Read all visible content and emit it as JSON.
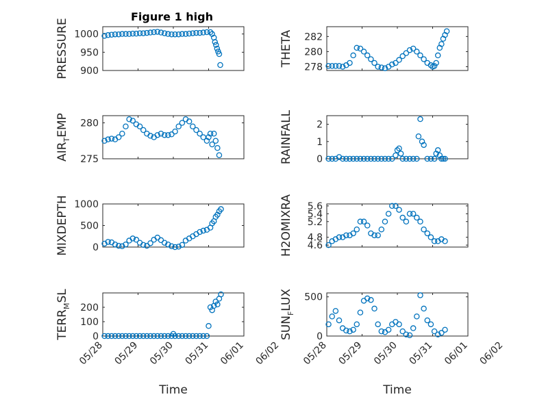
{
  "title": "Figure 1 high",
  "marker_color": "#0072bd",
  "chart_data": [
    {
      "type": "scatter",
      "ylabel": "PRESSURE",
      "ylabel_sub": "",
      "ylabel_tail": "",
      "ylim": [
        900,
        1020
      ],
      "yticks": [
        900,
        950,
        1000
      ],
      "ytick_labels": [
        "900",
        "950",
        "1000"
      ],
      "yminor": [
        910,
        920,
        930,
        940,
        960,
        970,
        980,
        990,
        1010
      ],
      "xlim": [
        0,
        4
      ],
      "grid": true,
      "x": [
        0.05,
        0.15,
        0.25,
        0.35,
        0.45,
        0.55,
        0.65,
        0.75,
        0.85,
        0.95,
        1.05,
        1.15,
        1.25,
        1.35,
        1.45,
        1.55,
        1.65,
        1.75,
        1.85,
        1.95,
        2.05,
        2.15,
        2.25,
        2.35,
        2.45,
        2.55,
        2.65,
        2.75,
        2.85,
        2.95,
        3.05,
        3.1,
        3.15,
        3.18,
        3.21,
        3.24,
        3.27,
        3.3,
        3.33
      ],
      "y": [
        995,
        997,
        998,
        999,
        999,
        1000,
        1000,
        1000,
        1001,
        1001,
        1002,
        1002,
        1003,
        1004,
        1005,
        1006,
        1004,
        1002,
        1000,
        999,
        999,
        999,
        1000,
        1000,
        1001,
        1002,
        1003,
        1003,
        1004,
        1005,
        1005,
        1000,
        990,
        978,
        970,
        960,
        952,
        945,
        915
      ]
    },
    {
      "type": "scatter",
      "ylabel": "THETA",
      "ylabel_sub": "",
      "ylabel_tail": "",
      "ylim": [
        277.5,
        283.3
      ],
      "yticks": [
        278,
        280,
        282
      ],
      "ytick_labels": [
        "278",
        "280",
        "282"
      ],
      "yminor": [
        279,
        281,
        283
      ],
      "xlim": [
        0,
        4
      ],
      "grid": true,
      "x": [
        0.05,
        0.15,
        0.25,
        0.35,
        0.45,
        0.55,
        0.65,
        0.75,
        0.85,
        0.95,
        1.05,
        1.15,
        1.25,
        1.35,
        1.45,
        1.55,
        1.65,
        1.75,
        1.85,
        1.95,
        2.05,
        2.15,
        2.25,
        2.35,
        2.45,
        2.55,
        2.65,
        2.75,
        2.85,
        2.95,
        3.0,
        3.05,
        3.1,
        3.15,
        3.2,
        3.25,
        3.3,
        3.35,
        3.4
      ],
      "y": [
        278.1,
        278.1,
        278.1,
        278.1,
        278.0,
        278.2,
        278.5,
        279.5,
        280.5,
        280.4,
        280.0,
        279.5,
        279.0,
        278.5,
        278.0,
        277.9,
        277.8,
        278.0,
        278.3,
        278.5,
        278.9,
        279.4,
        279.8,
        280.2,
        280.4,
        280.0,
        279.5,
        279.0,
        278.5,
        278.2,
        278.0,
        278.1,
        278.5,
        279.5,
        280.5,
        281.0,
        281.7,
        282.2,
        282.7
      ]
    },
    {
      "type": "scatter",
      "ylabel": "AIR",
      "ylabel_sub": "T",
      "ylabel_tail": "EMP",
      "ylim": [
        275,
        281
      ],
      "yticks": [
        275,
        280
      ],
      "ytick_labels": [
        "275",
        "280"
      ],
      "yminor": [
        276,
        277,
        278,
        279,
        281
      ],
      "xlim": [
        0,
        4
      ],
      "grid": true,
      "x": [
        0.05,
        0.15,
        0.25,
        0.35,
        0.45,
        0.55,
        0.65,
        0.75,
        0.85,
        0.95,
        1.05,
        1.15,
        1.25,
        1.35,
        1.45,
        1.55,
        1.65,
        1.75,
        1.85,
        1.95,
        2.05,
        2.15,
        2.25,
        2.35,
        2.45,
        2.55,
        2.65,
        2.75,
        2.85,
        2.95,
        3.0,
        3.05,
        3.1,
        3.15,
        3.2,
        3.25,
        3.3
      ],
      "y": [
        277.5,
        277.7,
        277.8,
        277.7,
        278.0,
        278.5,
        279.5,
        280.5,
        280.3,
        279.8,
        279.5,
        279.0,
        278.5,
        278.2,
        278.0,
        278.3,
        278.5,
        278.3,
        278.3,
        278.4,
        278.8,
        279.5,
        280.0,
        280.5,
        280.2,
        279.5,
        279.0,
        278.5,
        278.0,
        277.5,
        278.0,
        278.5,
        277.0,
        278.5,
        277.5,
        276.5,
        275.5
      ]
    },
    {
      "type": "scatter",
      "ylabel": "RAINFALL",
      "ylabel_sub": "",
      "ylabel_tail": "",
      "ylim": [
        0,
        2.5
      ],
      "yticks": [
        0,
        1,
        2
      ],
      "ytick_labels": [
        "0",
        "1",
        "2"
      ],
      "yminor": [
        0.5,
        1.5
      ],
      "xlim": [
        0,
        4
      ],
      "grid": true,
      "x": [
        0.05,
        0.15,
        0.25,
        0.35,
        0.45,
        0.55,
        0.65,
        0.75,
        0.85,
        0.95,
        1.05,
        1.15,
        1.25,
        1.35,
        1.45,
        1.55,
        1.65,
        1.75,
        1.85,
        1.95,
        2.0,
        2.05,
        2.1,
        2.15,
        2.25,
        2.35,
        2.45,
        2.55,
        2.6,
        2.65,
        2.7,
        2.75,
        2.85,
        2.95,
        3.05,
        3.1,
        3.15,
        3.2,
        3.25,
        3.3,
        3.35
      ],
      "y": [
        0,
        0,
        0,
        0.1,
        0,
        0,
        0,
        0,
        0,
        0,
        0,
        0,
        0,
        0,
        0,
        0,
        0,
        0,
        0,
        0.2,
        0.5,
        0.6,
        0.3,
        0,
        0,
        0,
        0,
        0,
        1.3,
        2.3,
        1.0,
        0.8,
        0,
        0,
        0,
        0.3,
        0.5,
        0.2,
        0,
        0,
        0
      ]
    },
    {
      "type": "scatter",
      "ylabel": "MIXDEPTH",
      "ylabel_sub": "",
      "ylabel_tail": "",
      "ylim": [
        0,
        1000
      ],
      "yticks": [
        0,
        500,
        1000
      ],
      "ytick_labels": [
        "0",
        "500",
        "1000"
      ],
      "yminor": [
        100,
        200,
        300,
        400,
        600,
        700,
        800,
        900
      ],
      "xlim": [
        0,
        4
      ],
      "grid": true,
      "x": [
        0.05,
        0.15,
        0.25,
        0.35,
        0.45,
        0.55,
        0.65,
        0.75,
        0.85,
        0.95,
        1.05,
        1.15,
        1.25,
        1.35,
        1.45,
        1.55,
        1.65,
        1.75,
        1.85,
        1.95,
        2.05,
        2.15,
        2.25,
        2.35,
        2.45,
        2.55,
        2.65,
        2.75,
        2.85,
        2.95,
        3.05,
        3.1,
        3.15,
        3.2,
        3.25,
        3.3,
        3.35
      ],
      "y": [
        80,
        120,
        110,
        60,
        30,
        20,
        60,
        150,
        200,
        170,
        100,
        50,
        30,
        90,
        170,
        220,
        160,
        100,
        60,
        20,
        0,
        10,
        50,
        150,
        200,
        250,
        300,
        350,
        380,
        400,
        450,
        550,
        600,
        700,
        750,
        830,
        880
      ]
    },
    {
      "type": "scatter",
      "ylabel": "H2OMIXRA",
      "ylabel_sub": "",
      "ylabel_tail": "",
      "ylim": [
        4.55,
        5.65
      ],
      "yticks": [
        4.6,
        4.8,
        5.2,
        5.4,
        5.6
      ],
      "ytick_labels": [
        "4.6",
        "4.8",
        "5.2",
        "5.4",
        "5.6"
      ],
      "yminor": [
        5.0
      ],
      "xlim": [
        0,
        4
      ],
      "grid": true,
      "x": [
        0.05,
        0.15,
        0.25,
        0.35,
        0.45,
        0.55,
        0.65,
        0.75,
        0.85,
        0.95,
        1.05,
        1.15,
        1.25,
        1.35,
        1.45,
        1.55,
        1.65,
        1.75,
        1.85,
        1.95,
        2.05,
        2.15,
        2.25,
        2.35,
        2.45,
        2.55,
        2.65,
        2.75,
        2.85,
        2.95,
        3.05,
        3.15,
        3.25,
        3.35
      ],
      "y": [
        4.6,
        4.7,
        4.75,
        4.8,
        4.8,
        4.85,
        4.85,
        4.9,
        5.0,
        5.2,
        5.2,
        5.1,
        4.9,
        4.85,
        4.85,
        5.0,
        5.2,
        5.4,
        5.6,
        5.6,
        5.5,
        5.3,
        5.2,
        5.4,
        5.4,
        5.3,
        5.2,
        5.0,
        4.9,
        4.8,
        4.7,
        4.7,
        4.75,
        4.7
      ]
    },
    {
      "type": "scatter",
      "ylabel": "TERR",
      "ylabel_sub": "M",
      "ylabel_tail": "SL",
      "ylim": [
        0,
        300
      ],
      "yticks": [
        0,
        100,
        200
      ],
      "ytick_labels": [
        "0",
        "100",
        "200"
      ],
      "yminor": [
        50,
        150,
        250
      ],
      "xlim": [
        0,
        4
      ],
      "grid": true,
      "x": [
        0.05,
        0.15,
        0.25,
        0.35,
        0.45,
        0.55,
        0.65,
        0.75,
        0.85,
        0.95,
        1.05,
        1.15,
        1.25,
        1.35,
        1.45,
        1.55,
        1.65,
        1.75,
        1.85,
        1.95,
        2.0,
        2.05,
        2.15,
        2.25,
        2.35,
        2.45,
        2.55,
        2.65,
        2.75,
        2.85,
        2.95,
        3.0,
        3.05,
        3.1,
        3.15,
        3.2,
        3.25,
        3.3,
        3.35
      ],
      "y": [
        0,
        0,
        0,
        0,
        0,
        0,
        0,
        0,
        0,
        0,
        0,
        0,
        0,
        0,
        0,
        0,
        0,
        0,
        0,
        0,
        15,
        0,
        0,
        0,
        0,
        0,
        0,
        0,
        0,
        0,
        0,
        70,
        200,
        180,
        210,
        240,
        220,
        260,
        290
      ]
    },
    {
      "type": "scatter",
      "ylabel": "SUN",
      "ylabel_sub": "F",
      "ylabel_tail": "LUX",
      "ylim": [
        0,
        550
      ],
      "yticks": [
        0,
        500
      ],
      "ytick_labels": [
        "0",
        "500"
      ],
      "yminor": [
        100,
        200,
        300,
        400
      ],
      "xlim": [
        0,
        4
      ],
      "grid": true,
      "x": [
        0.05,
        0.15,
        0.25,
        0.35,
        0.45,
        0.55,
        0.65,
        0.75,
        0.85,
        0.95,
        1.05,
        1.15,
        1.25,
        1.35,
        1.45,
        1.55,
        1.65,
        1.75,
        1.85,
        1.95,
        2.05,
        2.15,
        2.25,
        2.35,
        2.45,
        2.55,
        2.65,
        2.75,
        2.85,
        2.95,
        3.05,
        3.15,
        3.25,
        3.35
      ],
      "y": [
        150,
        250,
        320,
        200,
        100,
        70,
        60,
        80,
        150,
        300,
        450,
        480,
        460,
        350,
        150,
        60,
        50,
        80,
        150,
        180,
        150,
        60,
        20,
        10,
        100,
        250,
        520,
        350,
        200,
        150,
        60,
        20,
        40,
        80
      ]
    }
  ],
  "axes": {
    "xtick_labels": [
      "05/28",
      "05/29",
      "05/30",
      "05/31",
      "06/01",
      "06/02"
    ],
    "xlabel": "Time"
  }
}
